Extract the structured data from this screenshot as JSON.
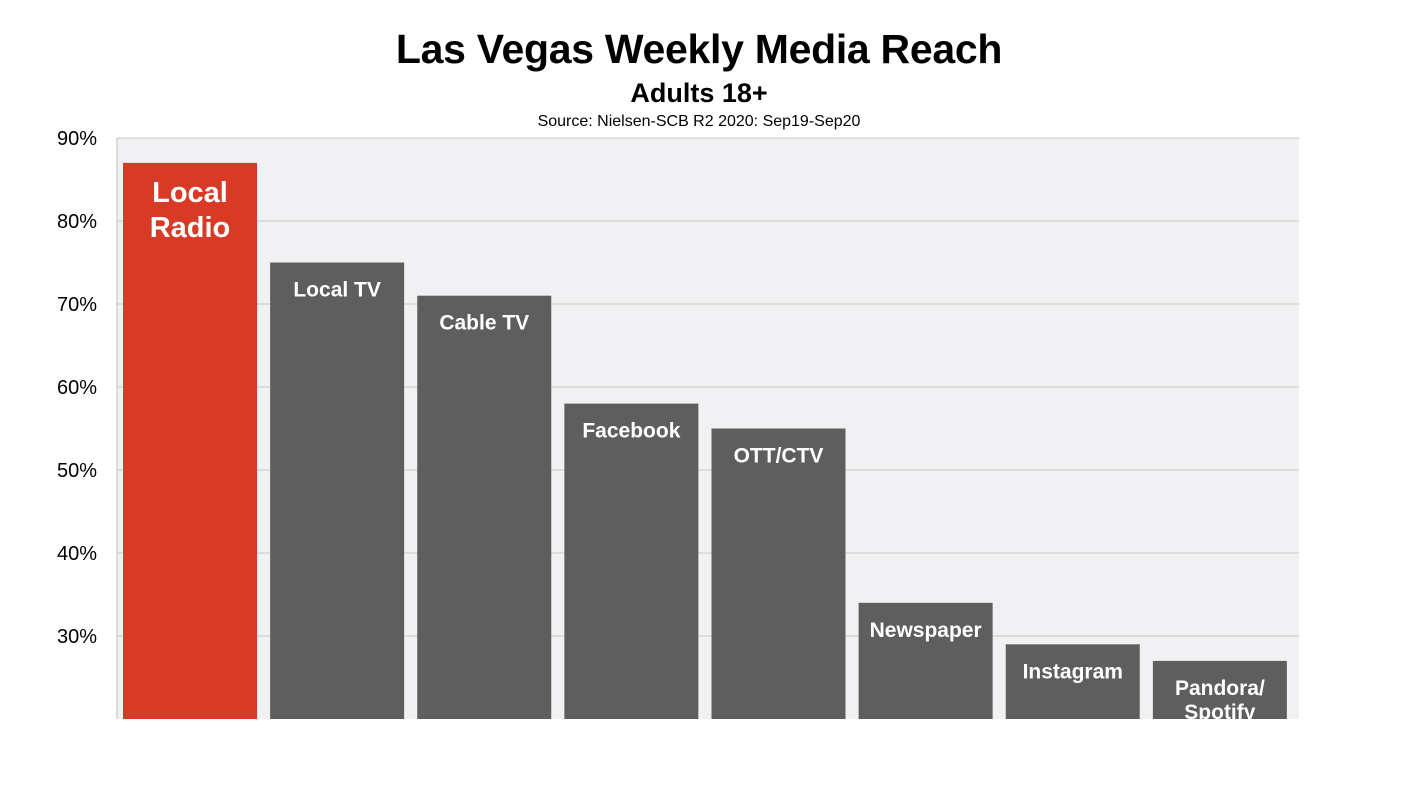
{
  "chart_data": {
    "type": "bar",
    "title": "Las Vegas Weekly Media Reach",
    "subtitle": "Adults 18+",
    "source": "Source: Nielsen-SCB R2 2020: Sep19-Sep20",
    "categories": [
      [
        "Local",
        "Radio"
      ],
      [
        "Local TV"
      ],
      [
        "Cable TV"
      ],
      [
        "Facebook"
      ],
      [
        "OTT/CTV"
      ],
      [
        "Newspaper"
      ],
      [
        "Instagram"
      ],
      [
        "Pandora/",
        "Spotify"
      ]
    ],
    "values": [
      87,
      75,
      71,
      58,
      55,
      34,
      29,
      27
    ],
    "ylim": [
      20,
      90
    ],
    "yticks": [
      "30%",
      "40%",
      "50%",
      "60%",
      "70%",
      "80%",
      "90%"
    ],
    "ytick_values": [
      30,
      40,
      50,
      60,
      70,
      80,
      90
    ],
    "grid": true,
    "colors": {
      "highlight": "#d93a25",
      "bar": "#5e5e5e",
      "plot_background": "#f1f1f3",
      "gridline": "#c7c7c7",
      "label": "#ffffff"
    },
    "highlight_index": 0
  }
}
